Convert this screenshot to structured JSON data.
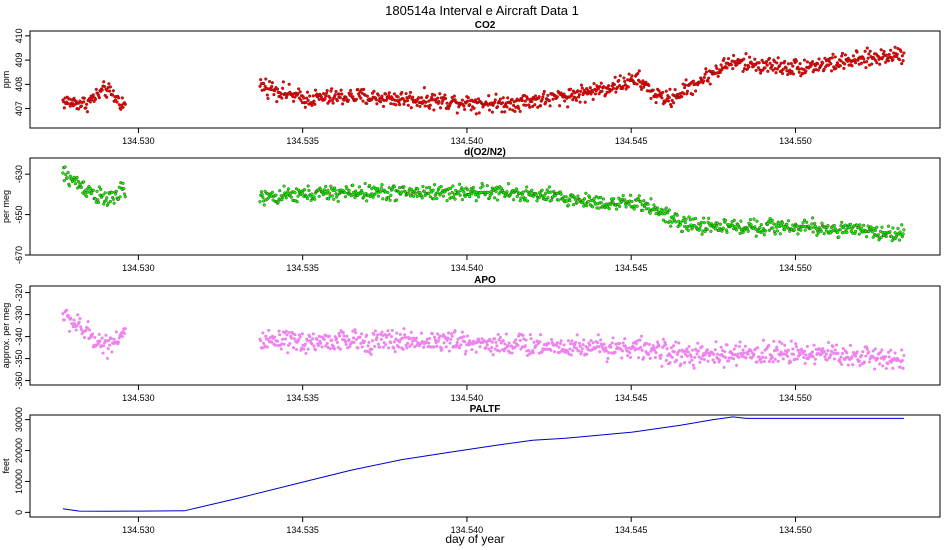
{
  "figure": {
    "title": "180514a   Interval e Aircraft Data 1",
    "xlabel": "day of year"
  },
  "chart_data": [
    {
      "type": "scatter",
      "title": "CO2",
      "ylabel": "ppm",
      "color": "#ff0000",
      "xlim": [
        134.5267,
        134.5544
      ],
      "ylim": [
        406.2,
        410.2
      ],
      "x_ticks": [
        134.53,
        134.535,
        134.54,
        134.545,
        134.55
      ],
      "x_tick_labels": [
        "134.530",
        "134.535",
        "134.540",
        "134.545",
        "134.550"
      ],
      "y_ticks": [
        407,
        408,
        409,
        410
      ],
      "y_tick_labels": [
        "407",
        "408",
        "409",
        "410"
      ],
      "segments": [
        {
          "x": [
            134.5277,
            134.5284,
            134.529,
            134.5296
          ],
          "y": [
            407.3,
            407.2,
            407.8,
            407.1
          ],
          "noise": 0.32
        },
        {
          "x": [
            134.5337,
            134.535,
            134.5365,
            134.538,
            134.5395,
            134.541,
            134.5425,
            134.5438,
            134.5452,
            134.5458,
            134.5462,
            134.548,
            134.55,
            134.552,
            134.5533
          ],
          "y": [
            408.0,
            407.4,
            407.5,
            407.4,
            407.3,
            407.2,
            407.4,
            407.7,
            408.2,
            407.5,
            407.4,
            408.9,
            408.7,
            409.0,
            409.3
          ],
          "noise": 0.35
        }
      ]
    },
    {
      "type": "scatter",
      "title": "d(O2/N2)",
      "ylabel": "per meg",
      "color": "#00ff00",
      "xlim": [
        134.5267,
        134.5544
      ],
      "ylim": [
        -670,
        -622
      ],
      "x_ticks": [
        134.53,
        134.535,
        134.54,
        134.545,
        134.55
      ],
      "x_tick_labels": [
        "134.530",
        "134.535",
        "134.540",
        "134.545",
        "134.550"
      ],
      "y_ticks": [
        -670,
        -650,
        -630
      ],
      "y_tick_labels": [
        "-670",
        "-650",
        "-630"
      ],
      "segments": [
        {
          "x": [
            134.5277,
            134.5284,
            134.529,
            134.5296
          ],
          "y": [
            -630,
            -637,
            -643,
            -638
          ],
          "noise": 4.5
        },
        {
          "x": [
            134.5337,
            134.535,
            134.5365,
            134.538,
            134.5395,
            134.541,
            134.5425,
            134.544,
            134.5455,
            134.5465,
            134.548,
            134.55,
            134.552,
            134.5533
          ],
          "y": [
            -642,
            -640,
            -639,
            -639,
            -639,
            -639,
            -641,
            -644,
            -645,
            -655,
            -656,
            -656,
            -658,
            -660
          ],
          "noise": 3.8
        }
      ]
    },
    {
      "type": "scatter",
      "title": "APO",
      "ylabel": "approx. per meg",
      "color": "#ee82ee",
      "xlim": [
        134.5267,
        134.5544
      ],
      "ylim": [
        -362,
        -317
      ],
      "x_ticks": [
        134.53,
        134.535,
        134.54,
        134.545,
        134.55
      ],
      "x_tick_labels": [
        "134.530",
        "134.535",
        "134.540",
        "134.545",
        "134.550"
      ],
      "y_ticks": [
        -360,
        -350,
        -340,
        -330,
        -320
      ],
      "y_tick_labels": [
        "-360",
        "-350",
        "-340",
        "-330",
        "-320"
      ],
      "segments": [
        {
          "x": [
            134.5277,
            134.5284,
            134.529,
            134.5296
          ],
          "y": [
            -330,
            -338,
            -344,
            -338
          ],
          "noise": 5
        },
        {
          "x": [
            134.5337,
            134.536,
            134.539,
            134.542,
            134.545,
            134.547,
            134.55,
            134.552,
            134.5533
          ],
          "y": [
            -343,
            -342,
            -342,
            -344,
            -345,
            -349,
            -347,
            -349,
            -350
          ],
          "noise": 5
        }
      ]
    },
    {
      "type": "line",
      "title": "PALTF",
      "ylabel": "feet",
      "color": "#0000cd",
      "xlim": [
        134.5267,
        134.5544
      ],
      "ylim": [
        -1500,
        31500
      ],
      "x_ticks": [
        134.53,
        134.535,
        134.54,
        134.545,
        134.55
      ],
      "x_tick_labels": [
        "134.530",
        "134.535",
        "134.540",
        "134.545",
        "134.550"
      ],
      "y_ticks": [
        0,
        10000,
        20000,
        30000
      ],
      "y_tick_labels": [
        "0",
        "10000",
        "20000",
        "30000"
      ],
      "x": [
        134.5277,
        134.5282,
        134.529,
        134.53,
        134.5314,
        134.533,
        134.535,
        134.5365,
        134.538,
        134.5395,
        134.541,
        134.542,
        134.543,
        134.545,
        134.5465,
        134.5475,
        134.5481,
        134.5485,
        134.55,
        134.5533
      ],
      "y": [
        1200,
        400,
        350,
        400,
        500,
        4500,
        9800,
        13700,
        17000,
        19500,
        21900,
        23300,
        24000,
        25900,
        28200,
        30000,
        30900,
        30400,
        30400,
        30400
      ]
    }
  ]
}
